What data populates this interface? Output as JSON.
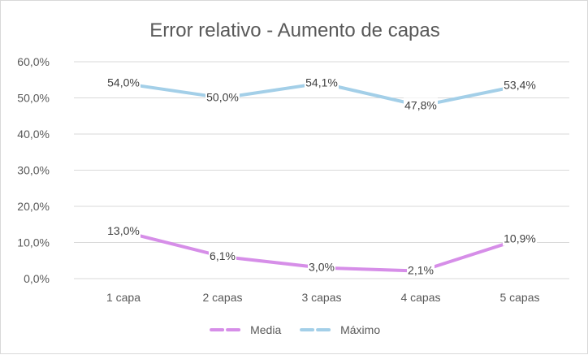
{
  "chart_data": {
    "type": "line",
    "title": "Error relativo - Aumento de capas",
    "xlabel": "",
    "ylabel": "",
    "categories": [
      "1 capa",
      "2 capas",
      "3 capas",
      "4 capas",
      "5 capas"
    ],
    "y_ticks": [
      "0,0%",
      "10,0%",
      "20,0%",
      "30,0%",
      "40,0%",
      "50,0%",
      "60,0%"
    ],
    "ylim": [
      0,
      60
    ],
    "grid": true,
    "legend_position": "bottom",
    "series": [
      {
        "name": "Media",
        "color": "#d68ee8",
        "values": [
          13.0,
          6.1,
          3.0,
          2.1,
          10.9
        ],
        "labels": [
          "13,0%",
          "6,1%",
          "3,0%",
          "2,1%",
          "10,9%"
        ]
      },
      {
        "name": "Máximo",
        "color": "#a3cfe8",
        "values": [
          54.0,
          50.0,
          54.1,
          47.8,
          53.4
        ],
        "labels": [
          "54,0%",
          "50,0%",
          "54,1%",
          "47,8%",
          "53,4%"
        ]
      }
    ]
  }
}
